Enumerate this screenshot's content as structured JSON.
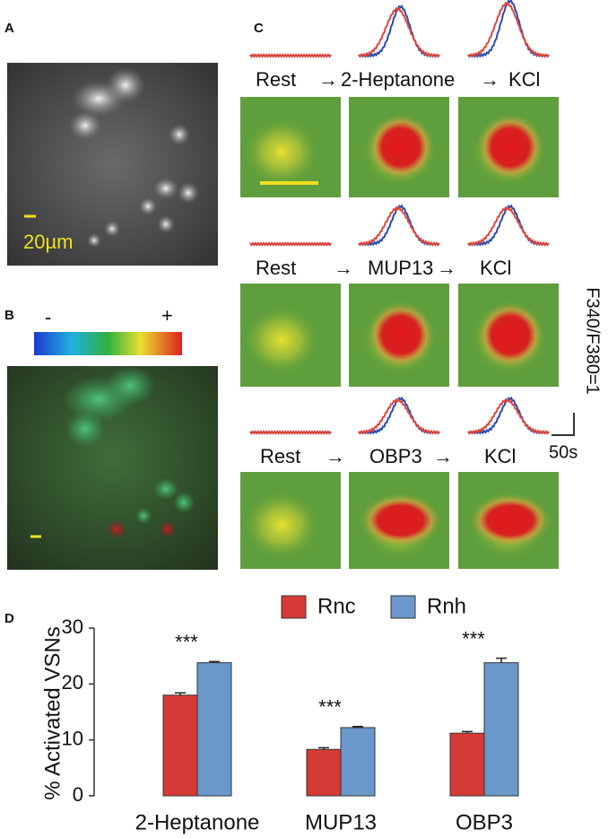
{
  "panels": {
    "a": {
      "label": "A",
      "scale_bar": "20µm"
    },
    "b": {
      "label": "B",
      "colorbar_min": "-",
      "colorbar_max": "+"
    },
    "c": {
      "label": "C",
      "rows": [
        [
          "Rest",
          "→",
          "2-Heptanone",
          "→",
          "KCl"
        ],
        [
          "Rest",
          "→",
          "MUP13",
          "→",
          "KCl"
        ],
        [
          "Rest",
          "→",
          "OBP3",
          "→",
          "KCl"
        ]
      ],
      "y_scale": "F340/F380=1",
      "x_scale": "50s"
    },
    "d": {
      "label": "D"
    }
  },
  "chart_data": {
    "type": "bar",
    "y_label": "% Activated VSNs",
    "categories": [
      "2-Heptanone",
      "MUP13",
      "OBP3"
    ],
    "series": [
      {
        "name": "Rnc",
        "color": "#d63a36",
        "values": [
          18,
          8.3,
          11.2
        ],
        "errors": [
          0.4,
          0.3,
          0.3
        ]
      },
      {
        "name": "Rnh",
        "color": "#6b98cb",
        "values": [
          23.8,
          12.2,
          23.8
        ],
        "errors": [
          0.2,
          0.2,
          0.8
        ]
      }
    ],
    "annotations": [
      "***",
      "***",
      "***"
    ],
    "ylim": [
      0,
      30
    ],
    "yticks": [
      0,
      10,
      20,
      30
    ]
  }
}
